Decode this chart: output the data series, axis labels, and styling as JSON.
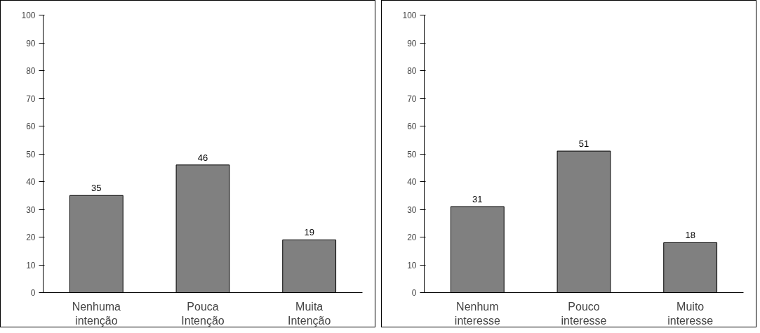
{
  "chart_data": [
    {
      "type": "bar",
      "categories": [
        "Nenhuma intenção",
        "Pouca Intenção",
        "Muita Intenção"
      ],
      "values": [
        35,
        46,
        19
      ],
      "color": "#808080",
      "ylim": [
        0,
        100
      ],
      "yticks": [
        0,
        10,
        20,
        30,
        40,
        50,
        60,
        70,
        80,
        90,
        100
      ],
      "data_labels": true,
      "grid": false
    },
    {
      "type": "bar",
      "categories": [
        "Nenhum interesse",
        "Pouco interesse",
        "Muito interesse"
      ],
      "values": [
        31,
        51,
        18
      ],
      "color": "#808080",
      "ylim": [
        0,
        100
      ],
      "yticks": [
        0,
        10,
        20,
        30,
        40,
        50,
        60,
        70,
        80,
        90,
        100
      ],
      "data_labels": true,
      "grid": false
    }
  ]
}
